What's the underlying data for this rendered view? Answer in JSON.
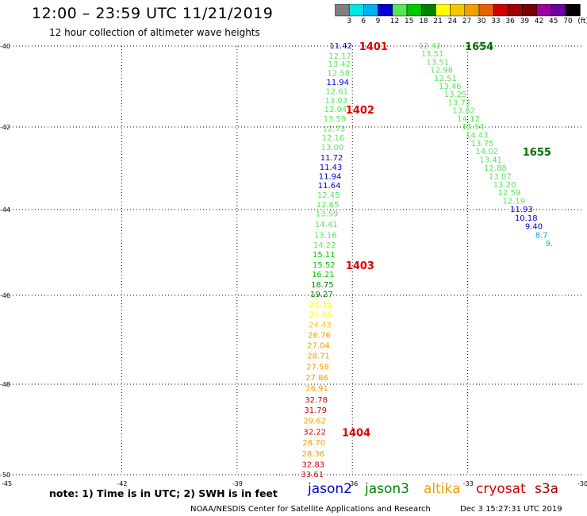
{
  "title": "12:00 – 23:59 UTC 11/21/2019",
  "subtitle": "12 hour collection of altimeter wave heights",
  "colorscale": {
    "labels": [
      "3",
      "6",
      "9",
      "12",
      "15",
      "18",
      "21",
      "24",
      "27",
      "30",
      "33",
      "36",
      "39",
      "42",
      "45",
      "70",
      "(ft)"
    ],
    "colors": [
      "#808080",
      "#00e6e6",
      "#00b0f0",
      "#0000d0",
      "#5ae65a",
      "#00c800",
      "#008000",
      "#ffff00",
      "#f0c800",
      "#f0a000",
      "#e66400",
      "#d20000",
      "#a00000",
      "#780000",
      "#a000a0",
      "#6e00a0",
      "#000000"
    ]
  },
  "map": {
    "lon_ticks": [
      "-45",
      "-42",
      "-39",
      "-36",
      "-33",
      "-30"
    ],
    "lat_ticks": [
      "-40",
      "-42",
      "-44",
      "-46",
      "-48",
      "-50"
    ],
    "lon_range": [
      -45,
      -30
    ],
    "lat_range": [
      -40,
      -50
    ]
  },
  "tracks": [
    {
      "name": "track-1401-1404",
      "label_color": "#e00000",
      "points": [
        {
          "lat": -40.0,
          "lon": -36.3,
          "v": "11.42",
          "c": "#0000d0"
        },
        {
          "lat": -40.25,
          "lon": -36.32,
          "v": "12.17",
          "c": "#5ae65a"
        },
        {
          "lat": -40.45,
          "lon": -36.34,
          "v": "13.42",
          "c": "#5ae65a"
        },
        {
          "lat": -40.68,
          "lon": -36.36,
          "v": "12.58",
          "c": "#5ae65a"
        },
        {
          "lat": -40.9,
          "lon": -36.38,
          "v": "11.94",
          "c": "#0000d0"
        },
        {
          "lat": -41.13,
          "lon": -36.4,
          "v": "12.61",
          "c": "#5ae65a"
        },
        {
          "lat": -41.35,
          "lon": -36.42,
          "v": "13.03",
          "c": "#5ae65a"
        },
        {
          "lat": -41.57,
          "lon": -36.44,
          "v": "13.04",
          "c": "#5ae65a"
        },
        {
          "lat": -41.8,
          "lon": -36.46,
          "v": "13.59",
          "c": "#5ae65a"
        },
        {
          "lat": -42.05,
          "lon": -36.48,
          "v": "12.73",
          "c": "#5ae65a"
        },
        {
          "lat": -42.27,
          "lon": -36.5,
          "v": "12.16",
          "c": "#5ae65a"
        },
        {
          "lat": -42.5,
          "lon": -36.52,
          "v": "13.00",
          "c": "#5ae65a"
        },
        {
          "lat": -42.75,
          "lon": -36.54,
          "v": "11.72",
          "c": "#0000d0"
        },
        {
          "lat": -42.98,
          "lon": -36.56,
          "v": "11.43",
          "c": "#0000d0"
        },
        {
          "lat": -43.2,
          "lon": -36.58,
          "v": "11.94",
          "c": "#0000d0"
        },
        {
          "lat": -43.42,
          "lon": -36.6,
          "v": "11.64",
          "c": "#0000d0"
        },
        {
          "lat": -43.65,
          "lon": -36.62,
          "v": "12.45",
          "c": "#5ae65a"
        },
        {
          "lat": -43.88,
          "lon": -36.64,
          "v": "12.65",
          "c": "#5ae65a"
        },
        {
          "lat": -44.1,
          "lon": -36.66,
          "v": "13.59",
          "c": "#5ae65a"
        },
        {
          "lat": -44.35,
          "lon": -36.68,
          "v": "14.41",
          "c": "#5ae65a"
        },
        {
          "lat": -44.6,
          "lon": -36.7,
          "v": "13.16",
          "c": "#5ae65a"
        },
        {
          "lat": -44.83,
          "lon": -36.72,
          "v": "14.22",
          "c": "#5ae65a"
        },
        {
          "lat": -45.06,
          "lon": -36.74,
          "v": "15.11",
          "c": "#00c800"
        },
        {
          "lat": -45.3,
          "lon": -36.74,
          "v": "15.52",
          "c": "#00c800"
        },
        {
          "lat": -45.52,
          "lon": -36.76,
          "v": "16.21",
          "c": "#00c800"
        },
        {
          "lat": -45.76,
          "lon": -36.78,
          "v": "18.75",
          "c": "#008000"
        },
        {
          "lat": -45.98,
          "lon": -36.8,
          "v": "19.27",
          "c": "#008000"
        },
        {
          "lat": -46.21,
          "lon": -36.82,
          "v": "21.15",
          "c": "#ffff00"
        },
        {
          "lat": -46.44,
          "lon": -36.82,
          "v": "21.65",
          "c": "#ffff00"
        },
        {
          "lat": -46.67,
          "lon": -36.84,
          "v": "24.43",
          "c": "#f0c800"
        },
        {
          "lat": -46.9,
          "lon": -36.86,
          "v": "26.76",
          "c": "#f0a000"
        },
        {
          "lat": -47.13,
          "lon": -36.88,
          "v": "27.04",
          "c": "#f0a000"
        },
        {
          "lat": -47.37,
          "lon": -36.88,
          "v": "28.71",
          "c": "#f0a000"
        },
        {
          "lat": -47.62,
          "lon": -36.9,
          "v": "27.58",
          "c": "#f0a000"
        },
        {
          "lat": -47.86,
          "lon": -36.92,
          "v": "27.86",
          "c": "#f0a000"
        },
        {
          "lat": -48.1,
          "lon": -36.92,
          "v": "26.91",
          "c": "#f0a000"
        },
        {
          "lat": -48.35,
          "lon": -36.94,
          "v": "32.78",
          "c": "#d20000"
        },
        {
          "lat": -48.58,
          "lon": -36.96,
          "v": "31.79",
          "c": "#d20000"
        },
        {
          "lat": -48.82,
          "lon": -36.98,
          "v": "29.62",
          "c": "#f0a000"
        },
        {
          "lat": -49.06,
          "lon": -36.98,
          "v": "32.22",
          "c": "#d20000"
        },
        {
          "lat": -49.3,
          "lon": -37.0,
          "v": "28.70",
          "c": "#f0a000"
        },
        {
          "lat": -49.54,
          "lon": -37.02,
          "v": "28.36",
          "c": "#f0a000"
        },
        {
          "lat": -49.78,
          "lon": -37.02,
          "v": "32.83",
          "c": "#d20000"
        },
        {
          "lat": -50.0,
          "lon": -37.04,
          "v": "33.61",
          "c": "#d20000"
        }
      ],
      "labels": [
        {
          "text": "1401",
          "lat": -40.0,
          "lon": -35.45
        },
        {
          "text": "1402",
          "lat": -41.57,
          "lon": -35.8
        },
        {
          "text": "1403",
          "lat": -45.3,
          "lon": -35.8
        },
        {
          "text": "1404",
          "lat": -49.06,
          "lon": -35.9
        }
      ]
    },
    {
      "name": "track-1654-1655",
      "label_color": "#007000",
      "points": [
        {
          "lat": -40.0,
          "lon": -33.98,
          "v": "12.42",
          "c": "#5ae65a"
        },
        {
          "lat": -40.2,
          "lon": -33.92,
          "v": "13.51",
          "c": "#5ae65a"
        },
        {
          "lat": -40.4,
          "lon": -33.78,
          "v": "13.51",
          "c": "#5ae65a"
        },
        {
          "lat": -40.6,
          "lon": -33.68,
          "v": "12.98",
          "c": "#5ae65a"
        },
        {
          "lat": -40.8,
          "lon": -33.58,
          "v": "12.51",
          "c": "#5ae65a"
        },
        {
          "lat": -41.0,
          "lon": -33.46,
          "v": "13.46",
          "c": "#5ae65a"
        },
        {
          "lat": -41.2,
          "lon": -33.32,
          "v": "13.25",
          "c": "#5ae65a"
        },
        {
          "lat": -41.4,
          "lon": -33.22,
          "v": "13.73",
          "c": "#5ae65a"
        },
        {
          "lat": -41.6,
          "lon": -33.1,
          "v": "13.62",
          "c": "#5ae65a"
        },
        {
          "lat": -41.8,
          "lon": -32.98,
          "v": "14.12",
          "c": "#5ae65a"
        },
        {
          "lat": -42.0,
          "lon": -32.86,
          "v": "13.94",
          "c": "#5ae65a"
        },
        {
          "lat": -42.2,
          "lon": -32.76,
          "v": "14.43",
          "c": "#5ae65a"
        },
        {
          "lat": -42.4,
          "lon": -32.62,
          "v": "13.75",
          "c": "#5ae65a"
        },
        {
          "lat": -42.6,
          "lon": -32.5,
          "v": "14.02",
          "c": "#5ae65a"
        },
        {
          "lat": -42.8,
          "lon": -32.4,
          "v": "13.41",
          "c": "#5ae65a"
        },
        {
          "lat": -43.0,
          "lon": -32.28,
          "v": "12.88",
          "c": "#5ae65a"
        },
        {
          "lat": -43.2,
          "lon": -32.16,
          "v": "13.07",
          "c": "#5ae65a"
        },
        {
          "lat": -43.4,
          "lon": -32.04,
          "v": "13.20",
          "c": "#5ae65a"
        },
        {
          "lat": -43.6,
          "lon": -31.92,
          "v": "12.59",
          "c": "#5ae65a"
        },
        {
          "lat": -43.8,
          "lon": -31.8,
          "v": "12.19",
          "c": "#5ae65a"
        },
        {
          "lat": -44.0,
          "lon": -31.6,
          "v": "11.93",
          "c": "#0000d0"
        },
        {
          "lat": -44.2,
          "lon": -31.48,
          "v": "10.18",
          "c": "#0000d0"
        },
        {
          "lat": -44.4,
          "lon": -31.28,
          "v": "9.40",
          "c": "#0000d0"
        },
        {
          "lat": -44.6,
          "lon": -31.08,
          "v": "8.7",
          "c": "#00b0f0"
        },
        {
          "lat": -44.8,
          "lon": -30.88,
          "v": "9.",
          "c": "#00b0f0"
        }
      ],
      "labels": [
        {
          "text": "1654",
          "lat": -40.0,
          "lon": -32.7
        },
        {
          "text": "1655",
          "lat": -42.6,
          "lon": -31.2
        }
      ]
    }
  ],
  "footer_note": "note:  1) Time is in UTC;  2) SWH is in feet",
  "legend": [
    {
      "name": "jason2",
      "color": "#0000d0"
    },
    {
      "name": "jason3",
      "color": "#008000"
    },
    {
      "name": "altika",
      "color": "#f0a000"
    },
    {
      "name": "cryosat",
      "color": "#d20000"
    },
    {
      "name": "s3a",
      "color": "#a00000"
    }
  ],
  "credit": "NOAA/NESDIS Center for Satellite Applications and Research",
  "timestamp": "Dec  3 15:27:31 UTC 2019"
}
